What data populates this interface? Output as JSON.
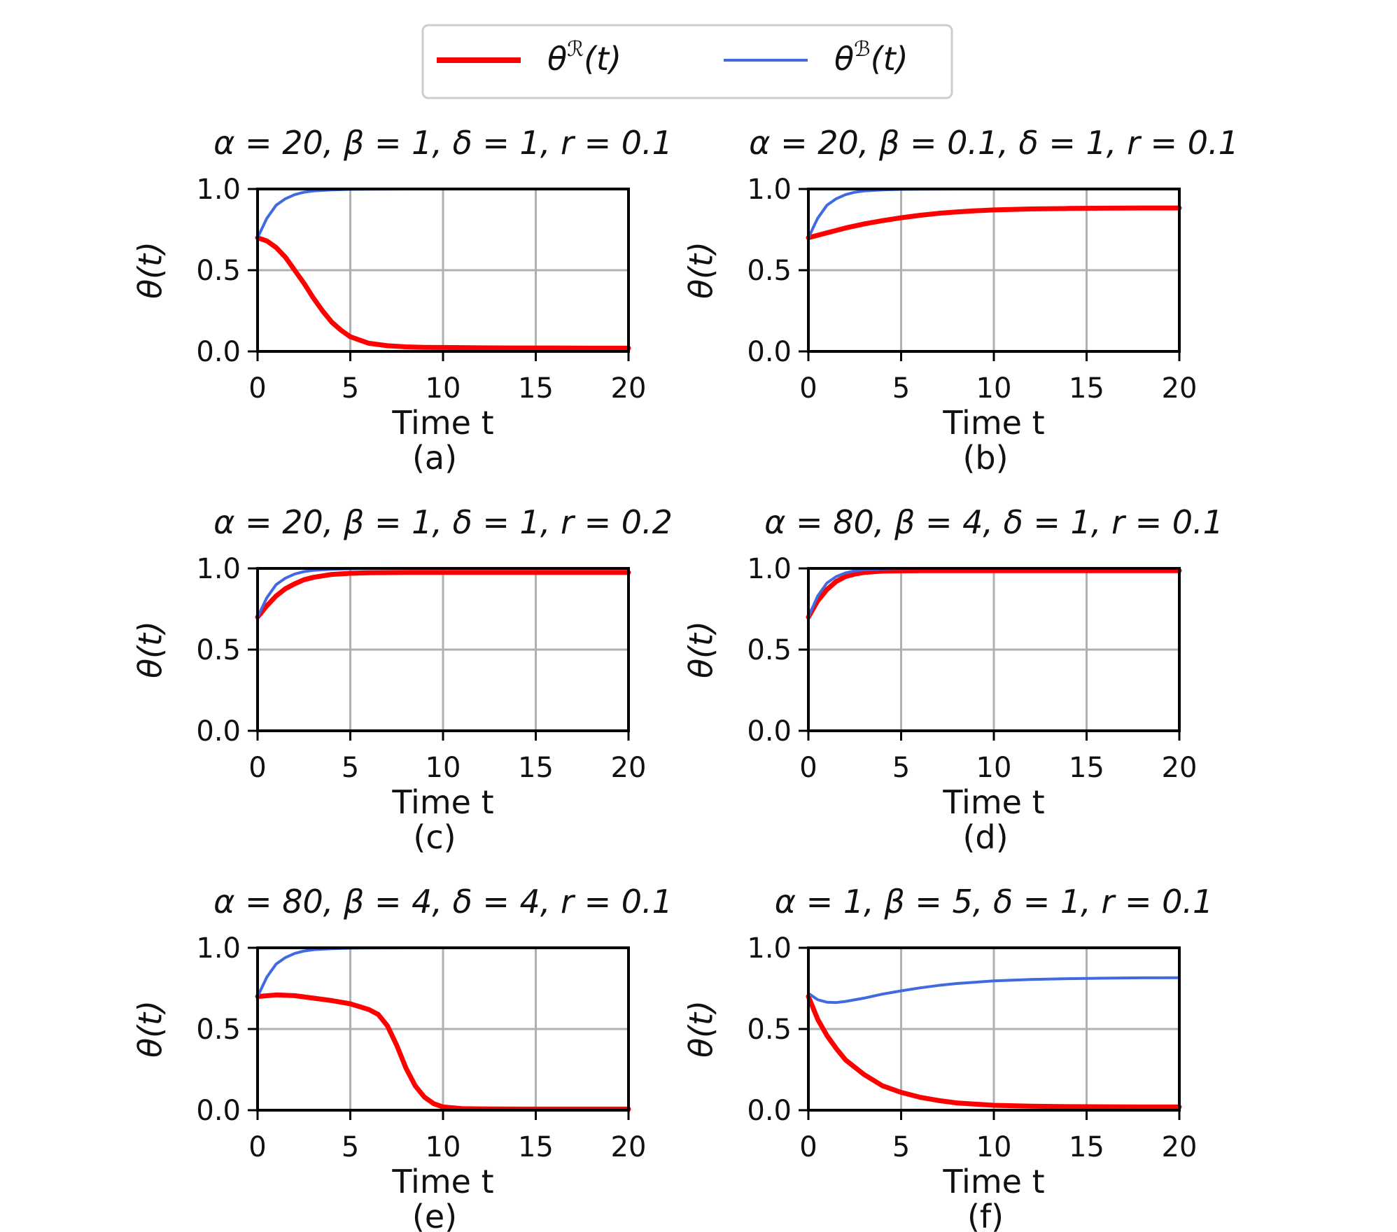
{
  "legend": {
    "entries": [
      {
        "label": "θ^ℛ(t)",
        "base": "θ",
        "sup": "ℛ",
        "arg": "(t)",
        "color": "#ff0000",
        "width": "thick"
      },
      {
        "label": "θ^ℬ(t)",
        "base": "θ",
        "sup": "ℬ",
        "arg": "(t)",
        "color": "#4169e1",
        "width": "thin"
      }
    ],
    "placement": "top-center"
  },
  "chart_data": [
    {
      "type": "line",
      "title": "α = 20, β = 1, δ = 1, r = 0.1",
      "sublabel": "(a)",
      "xlabel": "Time t",
      "ylabel": "θ(t)",
      "xlim": [
        0,
        20
      ],
      "ylim": [
        0,
        1
      ],
      "xticks": [
        "0",
        "5",
        "10",
        "15",
        "20"
      ],
      "yticks": [
        "0.0",
        "0.5",
        "1.0"
      ],
      "grid": true,
      "series": [
        {
          "color": "#ff0000",
          "x": [
            0,
            0.5,
            1,
            1.5,
            2,
            2.5,
            3,
            3.5,
            4,
            4.5,
            5,
            6,
            7,
            8,
            9,
            10,
            12,
            14,
            16,
            18,
            20
          ],
          "y": [
            0.7,
            0.68,
            0.64,
            0.58,
            0.5,
            0.42,
            0.33,
            0.25,
            0.18,
            0.13,
            0.09,
            0.05,
            0.035,
            0.028,
            0.025,
            0.024,
            0.022,
            0.021,
            0.021,
            0.02,
            0.02
          ]
        },
        {
          "color": "#4169e1",
          "x": [
            0,
            0.5,
            1,
            1.5,
            2,
            2.5,
            3,
            4,
            5,
            6,
            8,
            10,
            15,
            20
          ],
          "y": [
            0.7,
            0.82,
            0.9,
            0.94,
            0.965,
            0.98,
            0.988,
            0.995,
            0.998,
            0.999,
            1.0,
            1.0,
            1.0,
            1.0
          ]
        }
      ]
    },
    {
      "type": "line",
      "title": "α = 20, β = 0.1, δ = 1, r = 0.1",
      "sublabel": "(b)",
      "xlabel": "Time t",
      "ylabel": "θ(t)",
      "xlim": [
        0,
        20
      ],
      "ylim": [
        0,
        1
      ],
      "xticks": [
        "0",
        "5",
        "10",
        "15",
        "20"
      ],
      "yticks": [
        "0.0",
        "0.5",
        "1.0"
      ],
      "grid": true,
      "series": [
        {
          "color": "#ff0000",
          "x": [
            0,
            1,
            2,
            3,
            4,
            5,
            6,
            7,
            8,
            9,
            10,
            12,
            14,
            16,
            18,
            20
          ],
          "y": [
            0.7,
            0.73,
            0.76,
            0.785,
            0.805,
            0.823,
            0.838,
            0.85,
            0.859,
            0.866,
            0.871,
            0.877,
            0.88,
            0.882,
            0.883,
            0.883
          ]
        },
        {
          "color": "#4169e1",
          "x": [
            0,
            0.5,
            1,
            1.5,
            2,
            2.5,
            3,
            4,
            5,
            6,
            8,
            10,
            15,
            20
          ],
          "y": [
            0.7,
            0.82,
            0.9,
            0.94,
            0.965,
            0.98,
            0.988,
            0.995,
            0.998,
            0.999,
            1.0,
            1.0,
            1.0,
            1.0
          ]
        }
      ]
    },
    {
      "type": "line",
      "title": "α = 20, β = 1, δ = 1, r = 0.2",
      "sublabel": "(c)",
      "xlabel": "Time t",
      "ylabel": "θ(t)",
      "xlim": [
        0,
        20
      ],
      "ylim": [
        0,
        1
      ],
      "xticks": [
        "0",
        "5",
        "10",
        "15",
        "20"
      ],
      "yticks": [
        "0.0",
        "0.5",
        "1.0"
      ],
      "grid": true,
      "series": [
        {
          "color": "#ff0000",
          "x": [
            0,
            0.5,
            1,
            1.5,
            2,
            2.5,
            3,
            4,
            5,
            6,
            8,
            10,
            15,
            20
          ],
          "y": [
            0.7,
            0.77,
            0.83,
            0.875,
            0.905,
            0.93,
            0.945,
            0.963,
            0.97,
            0.973,
            0.975,
            0.975,
            0.975,
            0.975
          ]
        },
        {
          "color": "#4169e1",
          "x": [
            0,
            0.5,
            1,
            1.5,
            2,
            2.5,
            3,
            4,
            5,
            6,
            8,
            10,
            15,
            20
          ],
          "y": [
            0.7,
            0.82,
            0.9,
            0.94,
            0.965,
            0.98,
            0.988,
            0.995,
            0.998,
            0.999,
            1.0,
            1.0,
            1.0,
            1.0
          ]
        }
      ]
    },
    {
      "type": "line",
      "title": "α = 80, β = 4, δ = 1, r = 0.1",
      "sublabel": "(d)",
      "xlabel": "Time t",
      "ylabel": "θ(t)",
      "xlim": [
        0,
        20
      ],
      "ylim": [
        0,
        1
      ],
      "xticks": [
        "0",
        "5",
        "10",
        "15",
        "20"
      ],
      "yticks": [
        "0.0",
        "0.5",
        "1.0"
      ],
      "grid": true,
      "series": [
        {
          "color": "#ff0000",
          "x": [
            0,
            0.5,
            1,
            1.5,
            2,
            2.5,
            3,
            4,
            5,
            6,
            8,
            10,
            15,
            20
          ],
          "y": [
            0.7,
            0.8,
            0.87,
            0.92,
            0.95,
            0.965,
            0.975,
            0.983,
            0.985,
            0.986,
            0.986,
            0.986,
            0.986,
            0.986
          ]
        },
        {
          "color": "#4169e1",
          "x": [
            0,
            0.5,
            1,
            1.5,
            2,
            2.5,
            3,
            4,
            5,
            6,
            8,
            10,
            15,
            20
          ],
          "y": [
            0.7,
            0.83,
            0.91,
            0.95,
            0.972,
            0.985,
            0.991,
            0.997,
            0.999,
            1.0,
            1.0,
            1.0,
            1.0,
            1.0
          ]
        }
      ]
    },
    {
      "type": "line",
      "title": "α = 80, β = 4, δ = 4, r = 0.1",
      "sublabel": "(e)",
      "xlabel": "Time t",
      "ylabel": "θ(t)",
      "xlim": [
        0,
        20
      ],
      "ylim": [
        0,
        1
      ],
      "xticks": [
        "0",
        "5",
        "10",
        "15",
        "20"
      ],
      "yticks": [
        "0.0",
        "0.5",
        "1.0"
      ],
      "grid": true,
      "series": [
        {
          "color": "#ff0000",
          "x": [
            0,
            1,
            2,
            3,
            4,
            5,
            6,
            6.5,
            7,
            7.5,
            8,
            8.5,
            9,
            9.5,
            10,
            11,
            12,
            14,
            16,
            18,
            20
          ],
          "y": [
            0.7,
            0.71,
            0.705,
            0.69,
            0.675,
            0.655,
            0.62,
            0.59,
            0.52,
            0.4,
            0.26,
            0.15,
            0.08,
            0.04,
            0.02,
            0.01,
            0.008,
            0.007,
            0.007,
            0.007,
            0.007
          ]
        },
        {
          "color": "#4169e1",
          "x": [
            0,
            0.5,
            1,
            1.5,
            2,
            2.5,
            3,
            4,
            5,
            6,
            8,
            10,
            15,
            20
          ],
          "y": [
            0.7,
            0.82,
            0.9,
            0.94,
            0.965,
            0.98,
            0.988,
            0.995,
            0.998,
            0.999,
            1.0,
            1.0,
            1.0,
            1.0
          ]
        }
      ]
    },
    {
      "type": "line",
      "title": "α = 1, β = 5, δ = 1, r = 0.1",
      "sublabel": "(f)",
      "xlabel": "Time t",
      "ylabel": "θ(t)",
      "xlim": [
        0,
        20
      ],
      "ylim": [
        0,
        1
      ],
      "xticks": [
        "0",
        "5",
        "10",
        "15",
        "20"
      ],
      "yticks": [
        "0.0",
        "0.5",
        "1.0"
      ],
      "grid": true,
      "series": [
        {
          "color": "#ff0000",
          "x": [
            0,
            0.5,
            1,
            1.5,
            2,
            3,
            4,
            5,
            6,
            7,
            8,
            10,
            12,
            14,
            16,
            18,
            20
          ],
          "y": [
            0.7,
            0.56,
            0.46,
            0.38,
            0.31,
            0.22,
            0.15,
            0.11,
            0.08,
            0.06,
            0.045,
            0.03,
            0.025,
            0.022,
            0.021,
            0.02,
            0.02
          ]
        },
        {
          "color": "#4169e1",
          "x": [
            0,
            0.5,
            1,
            1.5,
            2,
            3,
            4,
            5,
            6,
            7,
            8,
            10,
            12,
            14,
            16,
            18,
            20
          ],
          "y": [
            0.72,
            0.68,
            0.665,
            0.663,
            0.67,
            0.69,
            0.715,
            0.735,
            0.753,
            0.768,
            0.78,
            0.796,
            0.805,
            0.81,
            0.813,
            0.815,
            0.816
          ]
        }
      ]
    }
  ]
}
